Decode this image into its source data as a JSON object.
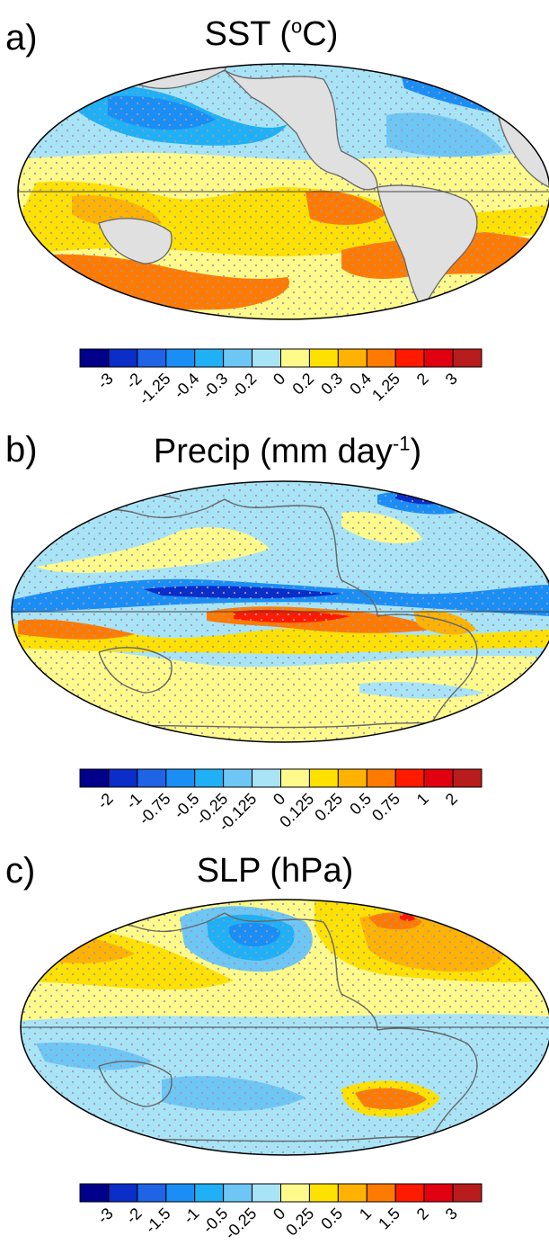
{
  "colors": {
    "palette": [
      "#00008b",
      "#0b2dc8",
      "#1f63e6",
      "#1a8ef5",
      "#1fb0f5",
      "#6ec6f5",
      "#a8e4f6",
      "#fffa8a",
      "#ffe100",
      "#ffb300",
      "#ff7a00",
      "#ff1a00",
      "#e00010",
      "#b81c1c"
    ],
    "land": "#e0e0e0",
    "coast": "#666666",
    "stipple": "#9a9ab8"
  },
  "panels": [
    {
      "letter": "a)",
      "title_text": "SST (",
      "title_sup": "o",
      "title_end": "C)",
      "colorbar_ticks": [
        "-3",
        "-2",
        "-1.25",
        "-0.4",
        "-0.3",
        "-0.2",
        "0",
        "0.2",
        "0.3",
        "0.4",
        "1.25",
        "2",
        "3"
      ]
    },
    {
      "letter": "b)",
      "title_text": "Precip (mm day",
      "title_sup": "-1",
      "title_end": ")",
      "colorbar_ticks": [
        "-2",
        "-1",
        "-0.75",
        "-0.5",
        "-0.25",
        "-0.125",
        "0",
        "0.125",
        "0.25",
        "0.5",
        "0.75",
        "1",
        "2"
      ]
    },
    {
      "letter": "c)",
      "title_text": "SLP (hPa)",
      "title_sup": "",
      "title_end": "",
      "colorbar_ticks": [
        "-3",
        "-2",
        "-1.5",
        "-1",
        "-0.5",
        "-0.25",
        "0",
        "0.25",
        "0.5",
        "1",
        "1.5",
        "2",
        "3"
      ]
    }
  ]
}
